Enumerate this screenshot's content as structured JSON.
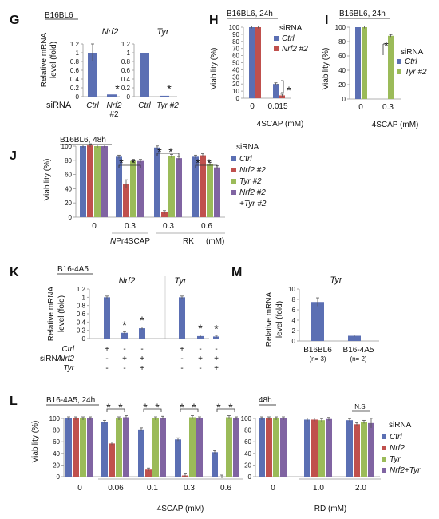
{
  "colors": {
    "blue": "#5b6fb3",
    "red": "#c0504d",
    "green": "#9bbb59",
    "purple": "#8064a2",
    "err": "#555555"
  },
  "panels": {
    "G": {
      "letter": "G",
      "cell": "B16BL6",
      "genes": [
        "Nrf2",
        "Tyr"
      ],
      "ylabel_lines": [
        "Relative mRNA",
        "level (fold)"
      ],
      "row_label": "siRNA",
      "ticks": [
        "0",
        "0.2",
        "0.4",
        "0.6",
        "0.8",
        "1",
        "1.2"
      ],
      "xcats": [
        "Ctrl",
        "Nrf2",
        "Ctrl",
        "Tyr #2"
      ],
      "nrf2_sub": "#2",
      "star": "*"
    },
    "H": {
      "letter": "H",
      "title": "B16BL6, 24h",
      "ylabel": "Viability (%)",
      "ticks": [
        "0",
        "10",
        "20",
        "30",
        "40",
        "50",
        "60",
        "70",
        "80",
        "90",
        "100"
      ],
      "xcats": [
        "0",
        "0.015"
      ],
      "xlabel": "4SCAP (mM)",
      "legend_title": "siRNA",
      "legend": [
        "Ctrl",
        "Nrf2 #2"
      ],
      "star": "*"
    },
    "I": {
      "letter": "I",
      "title": "B16BL6, 24h",
      "ylabel": "Viability (%)",
      "ticks": [
        "0",
        "20",
        "40",
        "60",
        "80",
        "100"
      ],
      "xcats": [
        "0",
        "0.3"
      ],
      "xlabel": "4SCAP (mM)",
      "legend_title": "siRNA",
      "legend": [
        "Ctrl",
        "Tyr #2"
      ],
      "star": "*"
    },
    "J": {
      "letter": "J",
      "title": "B16BL6, 48h",
      "ylabel": "Viability (%)",
      "ticks": [
        "0",
        "20",
        "40",
        "60",
        "80",
        "100"
      ],
      "xcats": [
        "0",
        "0.3",
        "0.3",
        "0.6"
      ],
      "group1": "NPr4SCAP",
      "group2": "RK",
      "unit": "(mM)",
      "legend_title": "siRNA",
      "legend": [
        "Ctrl",
        "Nrf2 #2",
        "Tyr #2",
        "Nrf2 #2",
        "+Tyr #2"
      ],
      "star": "*"
    },
    "K": {
      "letter": "K",
      "title": "B16-4A5",
      "genes": [
        "Nrf2",
        "Tyr"
      ],
      "ylabel_lines": [
        "Relative mRNA",
        "level (fold)"
      ],
      "ticks": [
        "0",
        "0.2",
        "0.4",
        "0.6",
        "0.8",
        "1",
        "1.2"
      ],
      "row_labels": [
        "Ctrl",
        "Nrf2",
        "Tyr"
      ],
      "siRNA": "siRNA",
      "signs": [
        [
          "+",
          "-",
          "-",
          "+",
          "-",
          "-"
        ],
        [
          "-",
          "+",
          "+",
          "-",
          "+",
          "+"
        ],
        [
          "-",
          "-",
          "+",
          "-",
          "-",
          "+"
        ]
      ],
      "star": "*"
    },
    "M": {
      "letter": "M",
      "title": "Tyr",
      "ylabel_lines": [
        "Relative mRNA",
        "level (fold)"
      ],
      "ticks": [
        "0",
        "2",
        "4",
        "6",
        "8",
        "10"
      ],
      "xcats": [
        "B16BL6",
        "B16-4A5"
      ],
      "ns": [
        "(n= 3)",
        "(n= 2)"
      ]
    },
    "L": {
      "letter": "L",
      "title": "B16-4A5, 24h",
      "title2": "48h",
      "ylabel": "Viability (%)",
      "ticks": [
        "0",
        "20",
        "40",
        "60",
        "80",
        "100"
      ],
      "xcats": [
        "0",
        "0.06",
        "0.1",
        "0.3",
        "0.6"
      ],
      "xlabel": "4SCAP (mM)",
      "xcats2": [
        "0",
        "1.0",
        "2.0"
      ],
      "xlabel2": "RD  (mM)",
      "ns_label": "N.S.",
      "legend_title": "siRNA",
      "legend": [
        "Ctrl",
        "Nrf2",
        "Tyr",
        "Nrf2+Tyr"
      ],
      "star": "*"
    }
  },
  "chart_data": [
    {
      "panel": "G",
      "type": "bar",
      "categories": [
        "Ctrl",
        "Nrf2 #2",
        "Ctrl",
        "Tyr #2"
      ],
      "values": [
        1.0,
        0.05,
        1.0,
        0.02
      ],
      "errors": [
        0.2,
        0.0,
        0.0,
        0.0
      ],
      "ylabel": "Relative mRNA level (fold)",
      "ylim": [
        0,
        1.2
      ]
    },
    {
      "panel": "H",
      "type": "bar",
      "categories": [
        "0",
        "0.015"
      ],
      "xlabel": "4SCAP (mM)",
      "ylabel": "Viability (%)",
      "ylim": [
        0,
        100
      ],
      "series": [
        {
          "name": "Ctrl",
          "values": [
            100,
            20
          ]
        },
        {
          "name": "Nrf2 #2",
          "values": [
            100,
            4
          ]
        }
      ]
    },
    {
      "panel": "I",
      "type": "bar",
      "categories": [
        "0",
        "0.3"
      ],
      "xlabel": "4SCAP (mM)",
      "ylabel": "Viability (%)",
      "ylim": [
        0,
        100
      ],
      "series": [
        {
          "name": "Ctrl",
          "values": [
            100,
            null
          ]
        },
        {
          "name": "Tyr #2",
          "values": [
            100,
            88
          ]
        }
      ]
    },
    {
      "panel": "J",
      "type": "bar",
      "categories": [
        "0",
        "NPr4SCAP 0.3",
        "RK 0.3",
        "RK 0.6"
      ],
      "ylabel": "Viability (%)",
      "ylim": [
        0,
        100
      ],
      "series": [
        {
          "name": "Ctrl",
          "values": [
            100,
            85,
            98,
            85
          ]
        },
        {
          "name": "Nrf2 #2",
          "values": [
            101,
            47,
            7,
            87
          ]
        },
        {
          "name": "Tyr #2",
          "values": [
            100,
            79,
            86,
            75
          ]
        },
        {
          "name": "Nrf2 #2 +Tyr #2",
          "values": [
            100,
            79,
            83,
            70
          ]
        }
      ]
    },
    {
      "panel": "K",
      "type": "bar",
      "categories": [
        "Nrf2 Ctrl",
        "Nrf2 siNrf2",
        "Nrf2 siNrf2+Tyr",
        "Tyr Ctrl",
        "Tyr siNrf2",
        "Tyr siNrf2+Tyr"
      ],
      "values": [
        1.0,
        0.14,
        0.25,
        1.0,
        0.06,
        0.05
      ],
      "ylabel": "Relative mRNA level (fold)",
      "ylim": [
        0,
        1.2
      ]
    },
    {
      "panel": "M",
      "type": "bar",
      "categories": [
        "B16BL6",
        "B16-4A5"
      ],
      "values": [
        7.5,
        1.0
      ],
      "errors": [
        0.8,
        0.15
      ],
      "ylabel": "Relative mRNA level (fold)",
      "ylim": [
        0,
        10
      ]
    },
    {
      "panel": "L",
      "type": "bar",
      "categories": [
        "0",
        "0.06",
        "0.1",
        "0.3",
        "0.6"
      ],
      "xlabel": "4SCAP (mM)",
      "ylabel": "Viability (%)",
      "ylim": [
        0,
        100
      ],
      "series": [
        {
          "name": "Ctrl",
          "values": [
            100,
            94,
            81,
            64,
            42
          ]
        },
        {
          "name": "Nrf2",
          "values": [
            100,
            57,
            12,
            2,
            0
          ]
        },
        {
          "name": "Tyr",
          "values": [
            100,
            100,
            100,
            102,
            102
          ]
        },
        {
          "name": "Nrf2+Tyr",
          "values": [
            100,
            102,
            101,
            100,
            100
          ]
        }
      ]
    },
    {
      "panel": "L-48h",
      "type": "bar",
      "categories": [
        "0",
        "1.0",
        "2.0"
      ],
      "xlabel": "RD (mM)",
      "ylabel": "Viability (%)",
      "ylim": [
        0,
        100
      ],
      "series": [
        {
          "name": "Ctrl",
          "values": [
            100,
            98,
            97
          ]
        },
        {
          "name": "Nrf2",
          "values": [
            100,
            98,
            90
          ]
        },
        {
          "name": "Tyr",
          "values": [
            100,
            97,
            94
          ]
        },
        {
          "name": "Nrf2+Tyr",
          "values": [
            100,
            99,
            92
          ]
        }
      ]
    }
  ]
}
